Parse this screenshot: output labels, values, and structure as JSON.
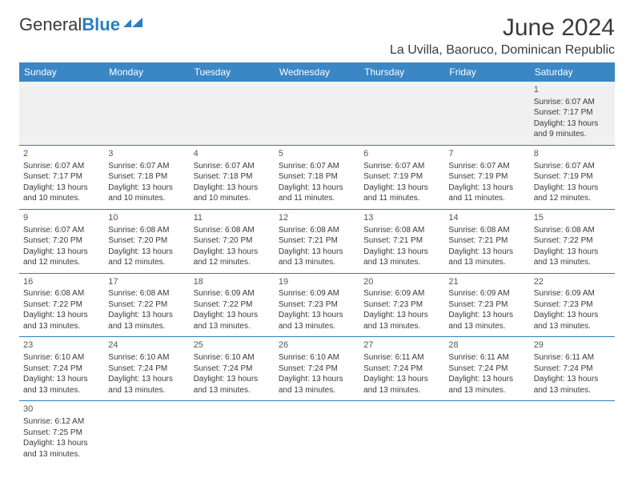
{
  "brand": {
    "part1": "General",
    "part2": "Blue"
  },
  "title": "June 2024",
  "location": "La Uvilla, Baoruco, Dominican Republic",
  "colors": {
    "header_bg": "#3b86c4",
    "header_text": "#ffffff",
    "accent": "#2a7fbf",
    "text": "#3a3a3a",
    "firstrow_bg": "#f0f0f0",
    "page_bg": "#ffffff"
  },
  "day_headers": [
    "Sunday",
    "Monday",
    "Tuesday",
    "Wednesday",
    "Thursday",
    "Friday",
    "Saturday"
  ],
  "weeks": [
    [
      null,
      null,
      null,
      null,
      null,
      null,
      {
        "n": "1",
        "sr": "Sunrise: 6:07 AM",
        "ss": "Sunset: 7:17 PM",
        "d1": "Daylight: 13 hours",
        "d2": "and 9 minutes."
      }
    ],
    [
      {
        "n": "2",
        "sr": "Sunrise: 6:07 AM",
        "ss": "Sunset: 7:17 PM",
        "d1": "Daylight: 13 hours",
        "d2": "and 10 minutes."
      },
      {
        "n": "3",
        "sr": "Sunrise: 6:07 AM",
        "ss": "Sunset: 7:18 PM",
        "d1": "Daylight: 13 hours",
        "d2": "and 10 minutes."
      },
      {
        "n": "4",
        "sr": "Sunrise: 6:07 AM",
        "ss": "Sunset: 7:18 PM",
        "d1": "Daylight: 13 hours",
        "d2": "and 10 minutes."
      },
      {
        "n": "5",
        "sr": "Sunrise: 6:07 AM",
        "ss": "Sunset: 7:18 PM",
        "d1": "Daylight: 13 hours",
        "d2": "and 11 minutes."
      },
      {
        "n": "6",
        "sr": "Sunrise: 6:07 AM",
        "ss": "Sunset: 7:19 PM",
        "d1": "Daylight: 13 hours",
        "d2": "and 11 minutes."
      },
      {
        "n": "7",
        "sr": "Sunrise: 6:07 AM",
        "ss": "Sunset: 7:19 PM",
        "d1": "Daylight: 13 hours",
        "d2": "and 11 minutes."
      },
      {
        "n": "8",
        "sr": "Sunrise: 6:07 AM",
        "ss": "Sunset: 7:19 PM",
        "d1": "Daylight: 13 hours",
        "d2": "and 12 minutes."
      }
    ],
    [
      {
        "n": "9",
        "sr": "Sunrise: 6:07 AM",
        "ss": "Sunset: 7:20 PM",
        "d1": "Daylight: 13 hours",
        "d2": "and 12 minutes."
      },
      {
        "n": "10",
        "sr": "Sunrise: 6:08 AM",
        "ss": "Sunset: 7:20 PM",
        "d1": "Daylight: 13 hours",
        "d2": "and 12 minutes."
      },
      {
        "n": "11",
        "sr": "Sunrise: 6:08 AM",
        "ss": "Sunset: 7:20 PM",
        "d1": "Daylight: 13 hours",
        "d2": "and 12 minutes."
      },
      {
        "n": "12",
        "sr": "Sunrise: 6:08 AM",
        "ss": "Sunset: 7:21 PM",
        "d1": "Daylight: 13 hours",
        "d2": "and 13 minutes."
      },
      {
        "n": "13",
        "sr": "Sunrise: 6:08 AM",
        "ss": "Sunset: 7:21 PM",
        "d1": "Daylight: 13 hours",
        "d2": "and 13 minutes."
      },
      {
        "n": "14",
        "sr": "Sunrise: 6:08 AM",
        "ss": "Sunset: 7:21 PM",
        "d1": "Daylight: 13 hours",
        "d2": "and 13 minutes."
      },
      {
        "n": "15",
        "sr": "Sunrise: 6:08 AM",
        "ss": "Sunset: 7:22 PM",
        "d1": "Daylight: 13 hours",
        "d2": "and 13 minutes."
      }
    ],
    [
      {
        "n": "16",
        "sr": "Sunrise: 6:08 AM",
        "ss": "Sunset: 7:22 PM",
        "d1": "Daylight: 13 hours",
        "d2": "and 13 minutes."
      },
      {
        "n": "17",
        "sr": "Sunrise: 6:08 AM",
        "ss": "Sunset: 7:22 PM",
        "d1": "Daylight: 13 hours",
        "d2": "and 13 minutes."
      },
      {
        "n": "18",
        "sr": "Sunrise: 6:09 AM",
        "ss": "Sunset: 7:22 PM",
        "d1": "Daylight: 13 hours",
        "d2": "and 13 minutes."
      },
      {
        "n": "19",
        "sr": "Sunrise: 6:09 AM",
        "ss": "Sunset: 7:23 PM",
        "d1": "Daylight: 13 hours",
        "d2": "and 13 minutes."
      },
      {
        "n": "20",
        "sr": "Sunrise: 6:09 AM",
        "ss": "Sunset: 7:23 PM",
        "d1": "Daylight: 13 hours",
        "d2": "and 13 minutes."
      },
      {
        "n": "21",
        "sr": "Sunrise: 6:09 AM",
        "ss": "Sunset: 7:23 PM",
        "d1": "Daylight: 13 hours",
        "d2": "and 13 minutes."
      },
      {
        "n": "22",
        "sr": "Sunrise: 6:09 AM",
        "ss": "Sunset: 7:23 PM",
        "d1": "Daylight: 13 hours",
        "d2": "and 13 minutes."
      }
    ],
    [
      {
        "n": "23",
        "sr": "Sunrise: 6:10 AM",
        "ss": "Sunset: 7:24 PM",
        "d1": "Daylight: 13 hours",
        "d2": "and 13 minutes."
      },
      {
        "n": "24",
        "sr": "Sunrise: 6:10 AM",
        "ss": "Sunset: 7:24 PM",
        "d1": "Daylight: 13 hours",
        "d2": "and 13 minutes."
      },
      {
        "n": "25",
        "sr": "Sunrise: 6:10 AM",
        "ss": "Sunset: 7:24 PM",
        "d1": "Daylight: 13 hours",
        "d2": "and 13 minutes."
      },
      {
        "n": "26",
        "sr": "Sunrise: 6:10 AM",
        "ss": "Sunset: 7:24 PM",
        "d1": "Daylight: 13 hours",
        "d2": "and 13 minutes."
      },
      {
        "n": "27",
        "sr": "Sunrise: 6:11 AM",
        "ss": "Sunset: 7:24 PM",
        "d1": "Daylight: 13 hours",
        "d2": "and 13 minutes."
      },
      {
        "n": "28",
        "sr": "Sunrise: 6:11 AM",
        "ss": "Sunset: 7:24 PM",
        "d1": "Daylight: 13 hours",
        "d2": "and 13 minutes."
      },
      {
        "n": "29",
        "sr": "Sunrise: 6:11 AM",
        "ss": "Sunset: 7:24 PM",
        "d1": "Daylight: 13 hours",
        "d2": "and 13 minutes."
      }
    ],
    [
      {
        "n": "30",
        "sr": "Sunrise: 6:12 AM",
        "ss": "Sunset: 7:25 PM",
        "d1": "Daylight: 13 hours",
        "d2": "and 13 minutes."
      },
      null,
      null,
      null,
      null,
      null,
      null
    ]
  ]
}
